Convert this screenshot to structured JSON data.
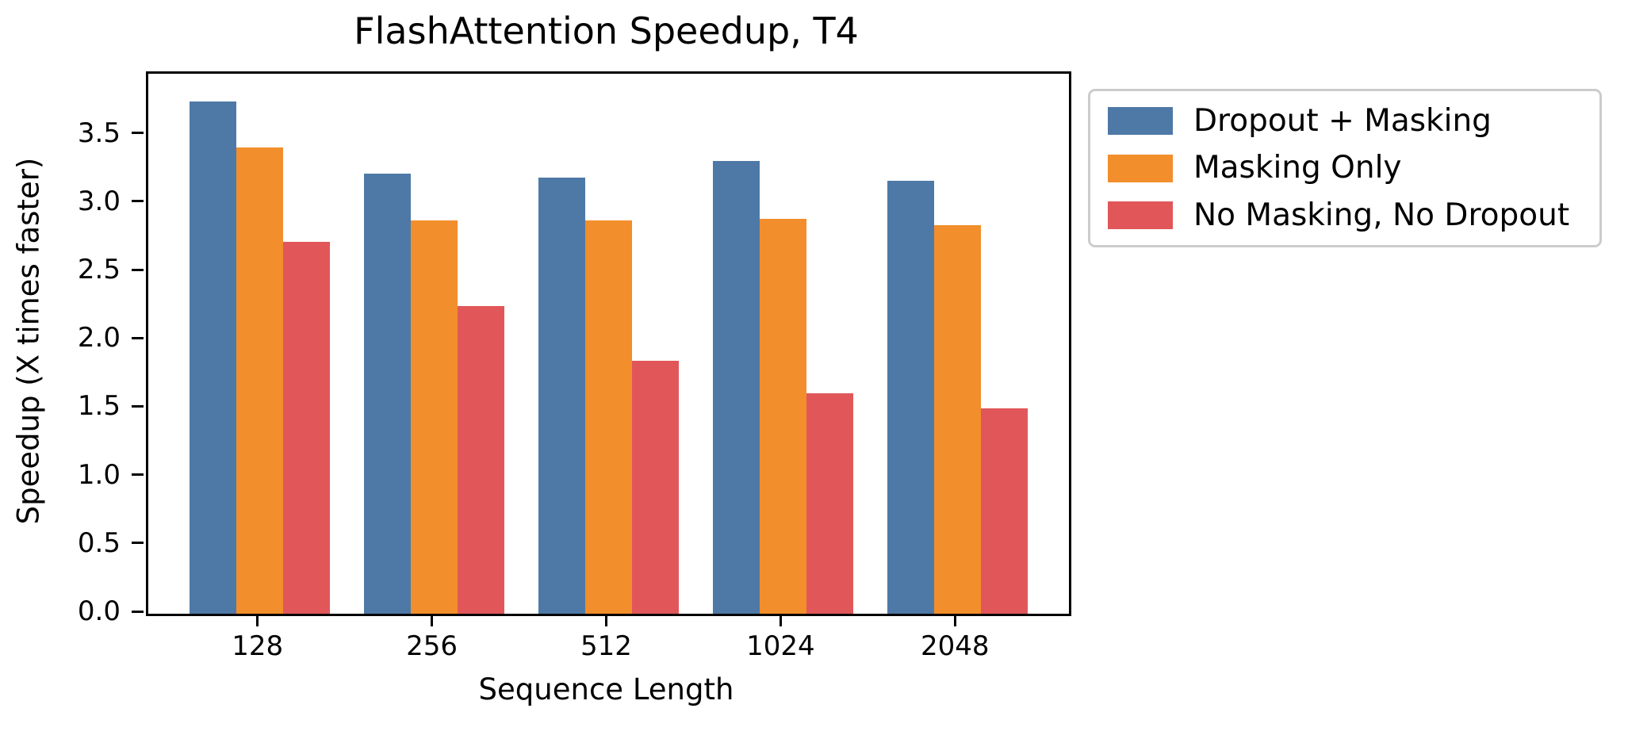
{
  "chart_data": {
    "type": "bar",
    "title": "FlashAttention Speedup, T4",
    "xlabel": "Sequence Length",
    "ylabel": "Speedup (X times faster)",
    "categories": [
      "128",
      "256",
      "512",
      "1024",
      "2048"
    ],
    "series": [
      {
        "name": "Dropout + Masking",
        "color": "#4E79A7",
        "values": [
          3.75,
          3.22,
          3.19,
          3.31,
          3.17
        ]
      },
      {
        "name": "Masking Only",
        "color": "#F28E2B",
        "values": [
          3.41,
          2.88,
          2.88,
          2.89,
          2.84
        ]
      },
      {
        "name": "No Masking, No Dropout",
        "color": "#E15759",
        "values": [
          2.72,
          2.25,
          1.85,
          1.61,
          1.5
        ]
      }
    ],
    "ylim": [
      0,
      3.95
    ],
    "yticks": [
      "0.0",
      "0.5",
      "1.0",
      "1.5",
      "2.0",
      "2.5",
      "3.0",
      "3.5"
    ],
    "xticks": [
      "128",
      "256",
      "512",
      "1024",
      "2048"
    ],
    "grid": false,
    "legend_position": "outside-upper-right",
    "bars_per_group": 3
  },
  "colors": {
    "background": "#ffffff",
    "axis": "#000000",
    "text": "#000000",
    "legend_border": "#cccccc"
  }
}
